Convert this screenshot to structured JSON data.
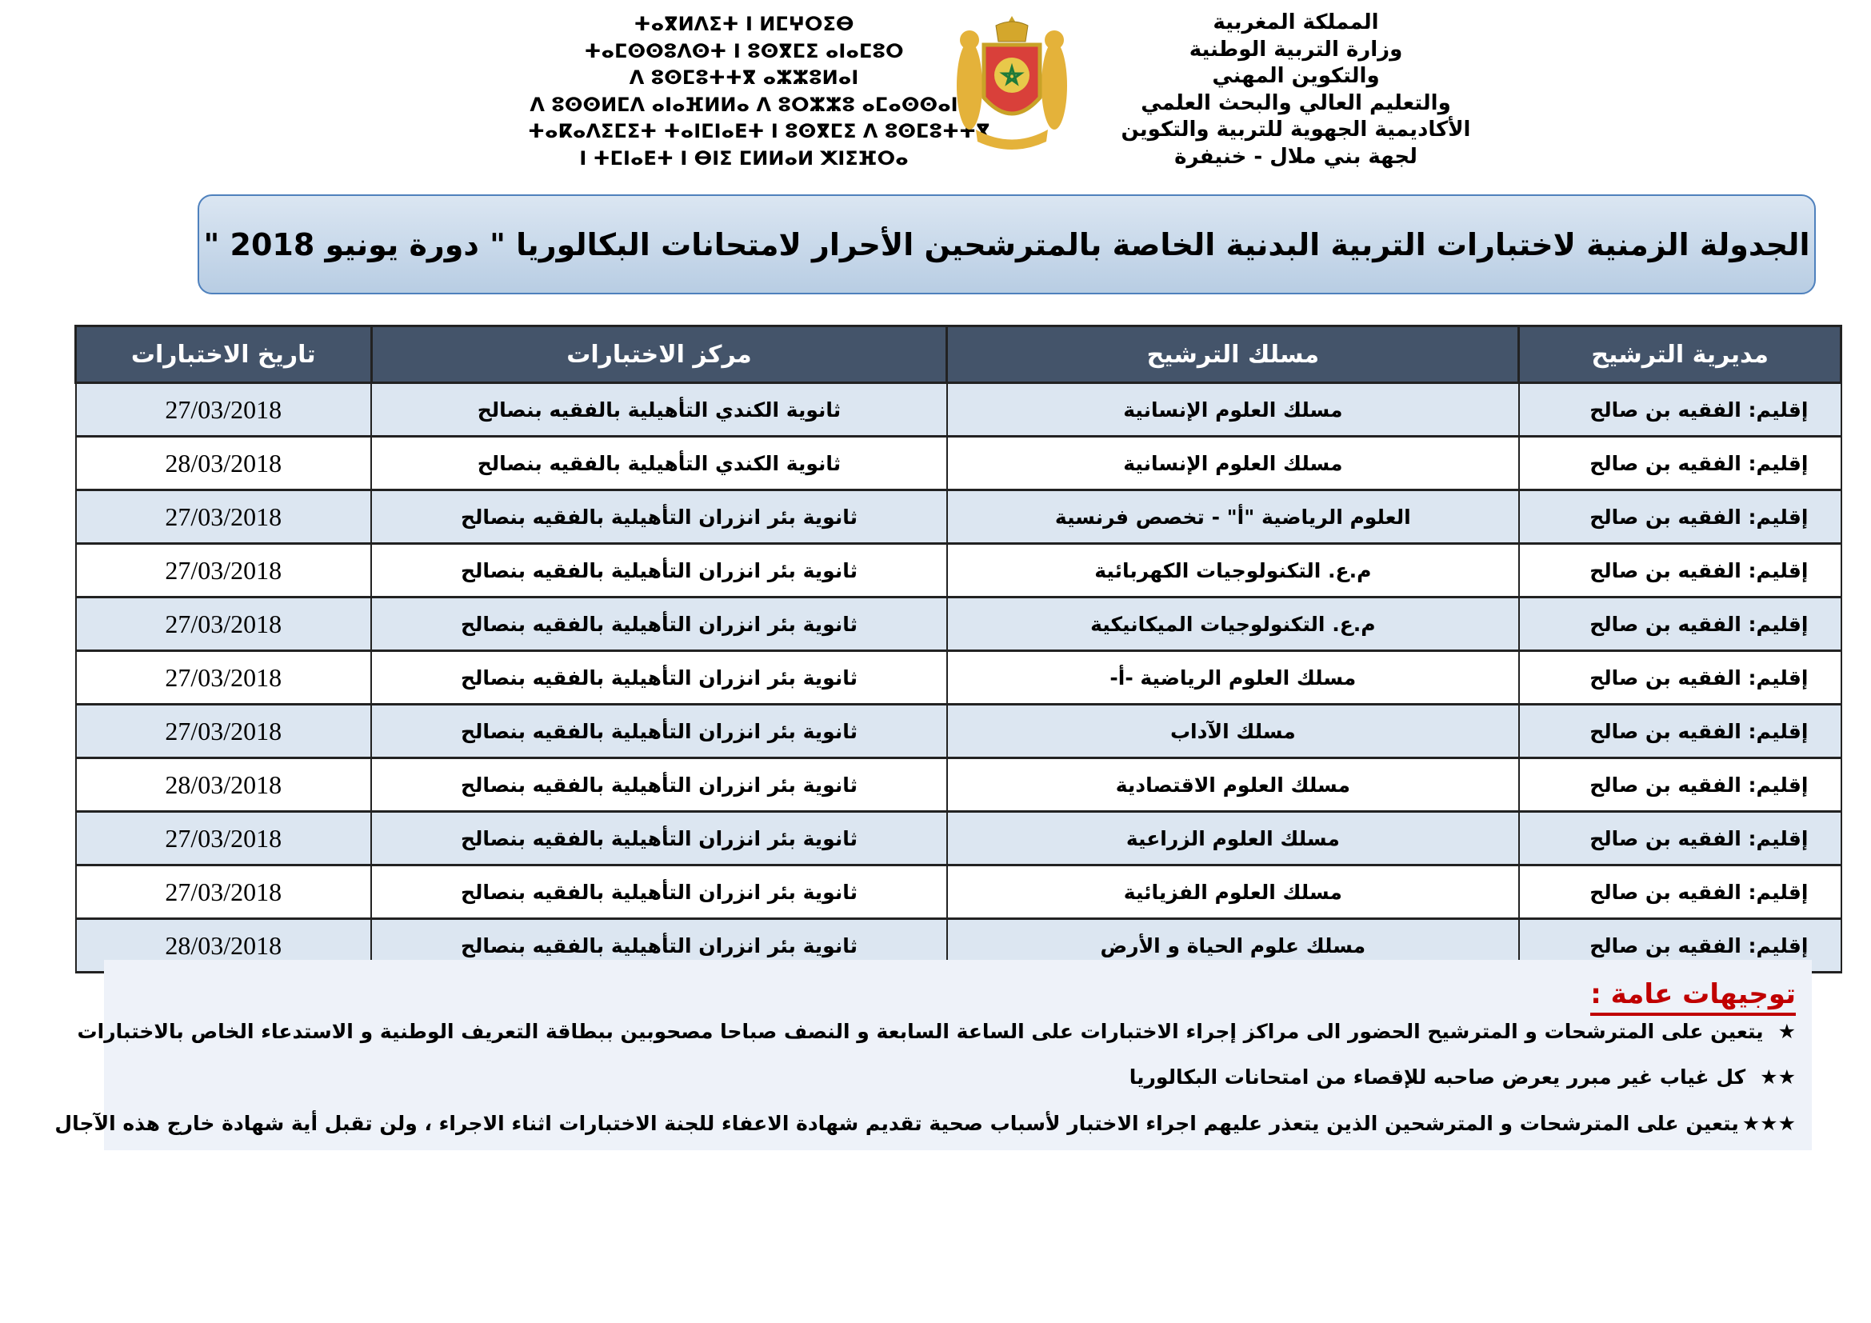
{
  "header": {
    "tifinagh_lines": [
      "ⵜⴰⴳⵍⴷⵉⵜ ⵏ ⵍⵎⵖⵔⵉⴱ",
      "ⵜⴰⵎⵙⵙⵓⴷⵙⵜ ⵏ ⵓⵙⴳⵎⵉ ⴰⵏⴰⵎⵓⵔ",
      "ⴷ ⵓⵙⵎⵓⵜⵜⴳ ⴰⵣⵣⵓⵍⴰⵏ",
      "ⴷ ⵓⵙⵙⵍⵎⴷ ⴰⵏⴰⴼⵍⵍⴰ ⴷ ⵓⵔⵣⵣⵓ ⴰⵎⴰⵙⵙⴰⵏ",
      "ⵜⴰⴽⴰⴷⵉⵎⵉⵜ ⵜⴰⵏⵎⵏⴰⴹⵜ ⵏ ⵓⵙⴳⵎⵉ ⴷ ⵓⵙⵎⵓⵜⵜⴳ",
      "ⵏ ⵜⵎⵏⴰⴹⵜ ⵏ ⴱⵏⵉ ⵎⵍⵍⴰⵍ ⵅⵏⵉⴼⵔⴰ"
    ],
    "arabic_lines": [
      "المملكة المغربية",
      "وزارة التربية الوطنية",
      "والتكوين المهني",
      "والتعليم العالي والبحث العلمي",
      "الأكاديمية الجهوية للتربية والتكوين",
      "لجهة بني ملال - خنيفرة"
    ],
    "emblem": "moroccan-coat-of-arms"
  },
  "title": "الجدولة الزمنية لاختبارات التربية البدنية الخاصة بالمترشحين الأحرار لامتحانات البكالوريا \" دورة يونيو 2018 \"",
  "table": {
    "headers": [
      "مديرية الترشيح",
      "مسلك الترشيح",
      "مركز الاختبارات",
      "تاريخ الاختبارات"
    ],
    "rows": [
      [
        "إقليم: الفقيه بن صالح",
        "مسلك العلوم الإنسانية",
        "ثانوية الكندي التأهيلية بالفقيه بنصالح",
        "27/03/2018"
      ],
      [
        "إقليم: الفقيه بن صالح",
        "مسلك العلوم الإنسانية",
        "ثانوية الكندي التأهيلية بالفقيه بنصالح",
        "28/03/2018"
      ],
      [
        "إقليم: الفقيه بن صالح",
        "العلوم الرياضية \"أ\" - تخصص فرنسية",
        "ثانوية بئر انزران التأهيلية بالفقيه بنصالح",
        "27/03/2018"
      ],
      [
        "إقليم: الفقيه بن صالح",
        "م.ع.  التكنولوجيات الكهربائية",
        "ثانوية بئر انزران التأهيلية بالفقيه بنصالح",
        "27/03/2018"
      ],
      [
        "إقليم: الفقيه بن صالح",
        "م.ع.  التكنولوجيات الميكانيكية",
        "ثانوية بئر انزران التأهيلية بالفقيه بنصالح",
        "27/03/2018"
      ],
      [
        "إقليم: الفقيه بن صالح",
        "مسلك  العلوم الرياضية -أ-",
        "ثانوية بئر انزران التأهيلية بالفقيه بنصالح",
        "27/03/2018"
      ],
      [
        "إقليم: الفقيه بن صالح",
        "مسلك الآداب",
        "ثانوية بئر انزران التأهيلية بالفقيه بنصالح",
        "27/03/2018"
      ],
      [
        "إقليم: الفقيه بن صالح",
        "مسلك العلوم الاقتصادية",
        "ثانوية بئر انزران التأهيلية بالفقيه بنصالح",
        "28/03/2018"
      ],
      [
        "إقليم: الفقيه بن صالح",
        "مسلك العلوم الزراعية",
        "ثانوية بئر انزران التأهيلية بالفقيه بنصالح",
        "27/03/2018"
      ],
      [
        "إقليم: الفقيه بن صالح",
        "مسلك العلوم الفزيائية",
        "ثانوية بئر انزران التأهيلية بالفقيه بنصالح",
        "27/03/2018"
      ],
      [
        "إقليم: الفقيه بن صالح",
        "مسلك علوم الحياة و الأرض",
        "ثانوية بئر انزران التأهيلية بالفقيه بنصالح",
        "28/03/2018"
      ]
    ]
  },
  "notes": {
    "heading": "توجيهات عامة :",
    "items": [
      {
        "stars": "★",
        "text": "يتعين على المترشحات و المترشيح الحضور الى مراكز إجراء الاختبارات على الساعة السابعة و النصف صباحا مصحوبين ببطاقة التعريف الوطنية  و الاستدعاء الخاص بالاختبارات"
      },
      {
        "stars": "★★",
        "text": "كل غياب غير مبرر يعرض صاحبه للإقصاء من امتحانات البكالوريا"
      },
      {
        "stars": "★★★",
        "text": "يتعين على المترشحات و المترشحين الذين يتعذر عليهم اجراء الاختبار لأسباب صحية تقديم شهادة الاعفاء   للجنة الاختبارات اثناء الاجراء  ، ولن تقبل أية شهادة خارج هذه الآجال"
      }
    ]
  },
  "colors": {
    "header_bg": "#44546a",
    "row_shade": "#dce6f1",
    "title_border": "#4f81bd",
    "notes_heading": "#c00000"
  }
}
